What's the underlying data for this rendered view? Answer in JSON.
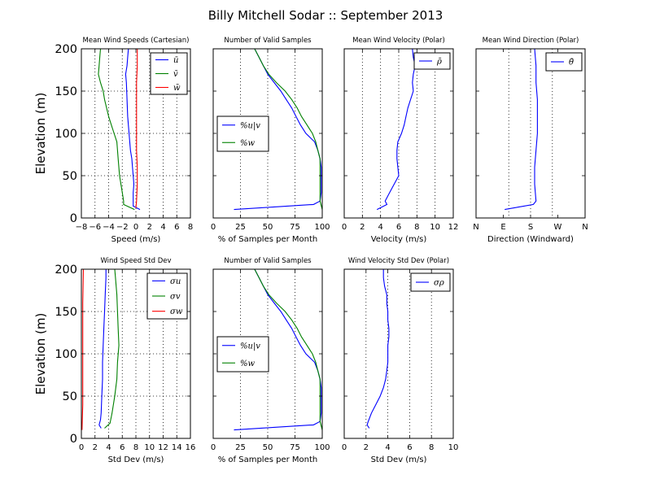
{
  "figure": {
    "title": "Billy Mitchell Sodar :: September 2013"
  },
  "colors": {
    "blue": "#0000ff",
    "green": "#008000",
    "red": "#ff0000",
    "grid": "#000000"
  },
  "chart_data": [
    {
      "type": "line",
      "title": "Mean Wind Speeds (Cartesian)",
      "xlabel": "Speed (m/s)",
      "ylabel": "Elevation (m)",
      "xlim": [
        -8,
        8
      ],
      "ylim": [
        0,
        200
      ],
      "xticks": [
        "−8",
        "−6",
        "−4",
        "−2",
        "0",
        "2",
        "4",
        "6",
        "8"
      ],
      "yticks": [
        "0",
        "50",
        "100",
        "150",
        "200"
      ],
      "grid": "vertical-and-horizontal",
      "legend": "top-right",
      "series": [
        {
          "name": "ū",
          "color": "#0000ff",
          "points": [
            [
              0.6,
              10
            ],
            [
              -0.4,
              14
            ],
            [
              -0.4,
              20
            ],
            [
              -0.4,
              30
            ],
            [
              -0.3,
              40
            ],
            [
              -0.4,
              50
            ],
            [
              -0.5,
              60
            ],
            [
              -0.6,
              70
            ],
            [
              -0.8,
              80
            ],
            [
              -1.0,
              100
            ],
            [
              -1.2,
              120
            ],
            [
              -1.3,
              140
            ],
            [
              -1.4,
              160
            ],
            [
              -1.5,
              170
            ],
            [
              -1.3,
              180
            ],
            [
              -1.2,
              190
            ],
            [
              -1.1,
              200
            ]
          ]
        },
        {
          "name": "v̄",
          "color": "#008000",
          "points": [
            [
              -0.2,
              10
            ],
            [
              -1.8,
              16
            ],
            [
              -1.8,
              20
            ],
            [
              -2.0,
              30
            ],
            [
              -2.2,
              40
            ],
            [
              -2.4,
              50
            ],
            [
              -2.6,
              70
            ],
            [
              -2.8,
              90
            ],
            [
              -3.2,
              100
            ],
            [
              -3.6,
              110
            ],
            [
              -4.0,
              120
            ],
            [
              -4.3,
              130
            ],
            [
              -4.6,
              140
            ],
            [
              -4.8,
              150
            ],
            [
              -5.2,
              160
            ],
            [
              -5.5,
              170
            ],
            [
              -5.4,
              180
            ],
            [
              -5.3,
              190
            ],
            [
              -5.2,
              200
            ]
          ]
        },
        {
          "name": "w̄",
          "color": "#ff0000",
          "points": [
            [
              0.0,
              12
            ],
            [
              0.1,
              20
            ],
            [
              0.2,
              40
            ],
            [
              0.2,
              60
            ],
            [
              0.1,
              80
            ],
            [
              0.1,
              100
            ],
            [
              0.1,
              120
            ],
            [
              0.1,
              140
            ],
            [
              0.1,
              160
            ],
            [
              0.2,
              180
            ],
            [
              0.2,
              200
            ]
          ]
        }
      ]
    },
    {
      "type": "line",
      "title": "Number of Valid Samples",
      "xlabel": "% of Samples per Month",
      "xlim": [
        0,
        100
      ],
      "ylim": [
        0,
        200
      ],
      "xticks": [
        "0",
        "25",
        "50",
        "75",
        "100"
      ],
      "grid": "vertical",
      "legend": "center-left",
      "series": [
        {
          "name": "%u|v",
          "color": "#0000ff",
          "points": [
            [
              19,
              10
            ],
            [
              92,
              16
            ],
            [
              98,
              20
            ],
            [
              99,
              30
            ],
            [
              99,
              50
            ],
            [
              99,
              60
            ],
            [
              98,
              70
            ],
            [
              96,
              80
            ],
            [
              93,
              90
            ],
            [
              85,
              100
            ],
            [
              80,
              110
            ],
            [
              76,
              120
            ],
            [
              72,
              130
            ],
            [
              67,
              140
            ],
            [
              62,
              150
            ],
            [
              56,
              160
            ],
            [
              50,
              170
            ],
            [
              46,
              180
            ],
            [
              42,
              190
            ],
            [
              38,
              200
            ]
          ]
        },
        {
          "name": "%w",
          "color": "#008000",
          "points": [
            [
              100,
              10
            ],
            [
              98,
              20
            ],
            [
              98,
              30
            ],
            [
              98,
              50
            ],
            [
              98,
              60
            ],
            [
              98,
              70
            ],
            [
              96,
              80
            ],
            [
              94,
              90
            ],
            [
              91,
              100
            ],
            [
              86,
              110
            ],
            [
              81,
              120
            ],
            [
              77,
              130
            ],
            [
              72,
              140
            ],
            [
              66,
              150
            ],
            [
              58,
              160
            ],
            [
              51,
              170
            ],
            [
              46,
              180
            ],
            [
              42,
              190
            ],
            [
              38,
              200
            ]
          ]
        }
      ]
    },
    {
      "type": "line",
      "title": "Mean Wind Velocity (Polar)",
      "xlabel": "Velocity (m/s)",
      "xlim": [
        0,
        12
      ],
      "ylim": [
        0,
        200
      ],
      "xticks": [
        "0",
        "2",
        "4",
        "6",
        "8",
        "10",
        "12"
      ],
      "grid": "vertical",
      "legend": "top-right",
      "series": [
        {
          "name": "ρ̄",
          "color": "#0000ff",
          "points": [
            [
              3.6,
              10
            ],
            [
              4.7,
              16
            ],
            [
              4.5,
              20
            ],
            [
              5.0,
              30
            ],
            [
              5.5,
              40
            ],
            [
              6.0,
              50
            ],
            [
              5.9,
              60
            ],
            [
              5.8,
              70
            ],
            [
              5.8,
              80
            ],
            [
              5.9,
              90
            ],
            [
              6.3,
              100
            ],
            [
              6.6,
              110
            ],
            [
              6.8,
              120
            ],
            [
              7.0,
              130
            ],
            [
              7.3,
              140
            ],
            [
              7.6,
              150
            ],
            [
              7.5,
              160
            ],
            [
              7.6,
              170
            ],
            [
              7.8,
              180
            ],
            [
              7.6,
              190
            ],
            [
              7.5,
              200
            ]
          ]
        }
      ]
    },
    {
      "type": "line",
      "title": "Mean Wind Direction (Polar)",
      "xlabel": "Direction (Windward)",
      "xticks": [
        "N",
        "E",
        "S",
        "W",
        "N"
      ],
      "ylim": [
        0,
        200
      ],
      "grid": "vertical",
      "legend": "top-right",
      "series": [
        {
          "name": "θ̄",
          "color": "#0000ff",
          "points": [
            [
              3.1,
              10
            ],
            [
              5.2,
              16
            ],
            [
              5.4,
              20
            ],
            [
              5.3,
              40
            ],
            [
              5.3,
              60
            ],
            [
              5.4,
              80
            ],
            [
              5.5,
              100
            ],
            [
              5.5,
              120
            ],
            [
              5.5,
              140
            ],
            [
              5.4,
              160
            ],
            [
              5.4,
              180
            ],
            [
              5.3,
              200
            ]
          ]
        }
      ]
    },
    {
      "type": "line",
      "title": "Wind Speed Std Dev",
      "xlabel": "Std Dev (m/s)",
      "ylabel": "Elevation (m)",
      "xlim": [
        0,
        16
      ],
      "ylim": [
        0,
        200
      ],
      "xticks": [
        "0",
        "2",
        "4",
        "6",
        "8",
        "10",
        "12",
        "14",
        "16"
      ],
      "yticks": [
        "0",
        "50",
        "100",
        "150",
        "200"
      ],
      "grid": "vertical-and-horizontal",
      "legend": "top-right",
      "series": [
        {
          "name": "σu",
          "color": "#0000ff",
          "points": [
            [
              2.9,
              12
            ],
            [
              2.6,
              16
            ],
            [
              2.8,
              22
            ],
            [
              2.9,
              30
            ],
            [
              3.0,
              50
            ],
            [
              3.1,
              70
            ],
            [
              3.1,
              90
            ],
            [
              3.2,
              110
            ],
            [
              3.3,
              130
            ],
            [
              3.4,
              150
            ],
            [
              3.5,
              170
            ],
            [
              3.6,
              190
            ],
            [
              3.6,
              200
            ]
          ]
        },
        {
          "name": "σv",
          "color": "#008000",
          "points": [
            [
              3.4,
              12
            ],
            [
              4.2,
              18
            ],
            [
              4.5,
              30
            ],
            [
              4.9,
              50
            ],
            [
              5.2,
              70
            ],
            [
              5.3,
              90
            ],
            [
              5.5,
              110
            ],
            [
              5.4,
              130
            ],
            [
              5.3,
              150
            ],
            [
              5.2,
              170
            ],
            [
              5.0,
              190
            ],
            [
              4.9,
              200
            ]
          ]
        },
        {
          "name": "σw",
          "color": "#ff0000",
          "points": [
            [
              0.1,
              10
            ],
            [
              0.2,
              40
            ],
            [
              0.2,
              100
            ],
            [
              0.2,
              160
            ],
            [
              0.3,
              200
            ]
          ]
        }
      ]
    },
    {
      "type": "line",
      "title": "Number of Valid Samples",
      "xlabel": "% of Samples per Month",
      "xlim": [
        0,
        100
      ],
      "ylim": [
        0,
        200
      ],
      "xticks": [
        "0",
        "25",
        "50",
        "75",
        "100"
      ],
      "grid": "vertical",
      "legend": "center-left",
      "series": [
        {
          "name": "%u|v",
          "color": "#0000ff",
          "points": [
            [
              19,
              10
            ],
            [
              92,
              16
            ],
            [
              98,
              20
            ],
            [
              99,
              30
            ],
            [
              99,
              50
            ],
            [
              99,
              60
            ],
            [
              98,
              70
            ],
            [
              96,
              80
            ],
            [
              93,
              90
            ],
            [
              85,
              100
            ],
            [
              80,
              110
            ],
            [
              76,
              120
            ],
            [
              72,
              130
            ],
            [
              67,
              140
            ],
            [
              62,
              150
            ],
            [
              56,
              160
            ],
            [
              50,
              170
            ],
            [
              46,
              180
            ],
            [
              42,
              190
            ],
            [
              38,
              200
            ]
          ]
        },
        {
          "name": "%w",
          "color": "#008000",
          "points": [
            [
              100,
              10
            ],
            [
              98,
              20
            ],
            [
              98,
              30
            ],
            [
              98,
              50
            ],
            [
              98,
              60
            ],
            [
              98,
              70
            ],
            [
              96,
              80
            ],
            [
              94,
              90
            ],
            [
              91,
              100
            ],
            [
              86,
              110
            ],
            [
              81,
              120
            ],
            [
              77,
              130
            ],
            [
              72,
              140
            ],
            [
              66,
              150
            ],
            [
              58,
              160
            ],
            [
              51,
              170
            ],
            [
              46,
              180
            ],
            [
              42,
              190
            ],
            [
              38,
              200
            ]
          ]
        }
      ]
    },
    {
      "type": "line",
      "title": "Wind Velocity Std Dev (Polar)",
      "xlabel": "Std Dev (m/s)",
      "xlim": [
        0,
        10
      ],
      "ylim": [
        0,
        200
      ],
      "xticks": [
        "0",
        "2",
        "4",
        "6",
        "8",
        "10"
      ],
      "grid": "vertical",
      "legend": "top-right",
      "series": [
        {
          "name": "σρ",
          "color": "#0000ff",
          "points": [
            [
              2.3,
              12
            ],
            [
              2.1,
              16
            ],
            [
              2.2,
              20
            ],
            [
              2.5,
              30
            ],
            [
              2.9,
              40
            ],
            [
              3.3,
              50
            ],
            [
              3.6,
              60
            ],
            [
              3.8,
              70
            ],
            [
              3.9,
              80
            ],
            [
              4.0,
              90
            ],
            [
              4.0,
              100
            ],
            [
              4.0,
              110
            ],
            [
              4.1,
              120
            ],
            [
              4.1,
              130
            ],
            [
              4.0,
              140
            ],
            [
              4.0,
              150
            ],
            [
              3.9,
              160
            ],
            [
              3.9,
              170
            ],
            [
              3.7,
              180
            ],
            [
              3.6,
              190
            ],
            [
              3.6,
              200
            ]
          ]
        }
      ]
    }
  ]
}
